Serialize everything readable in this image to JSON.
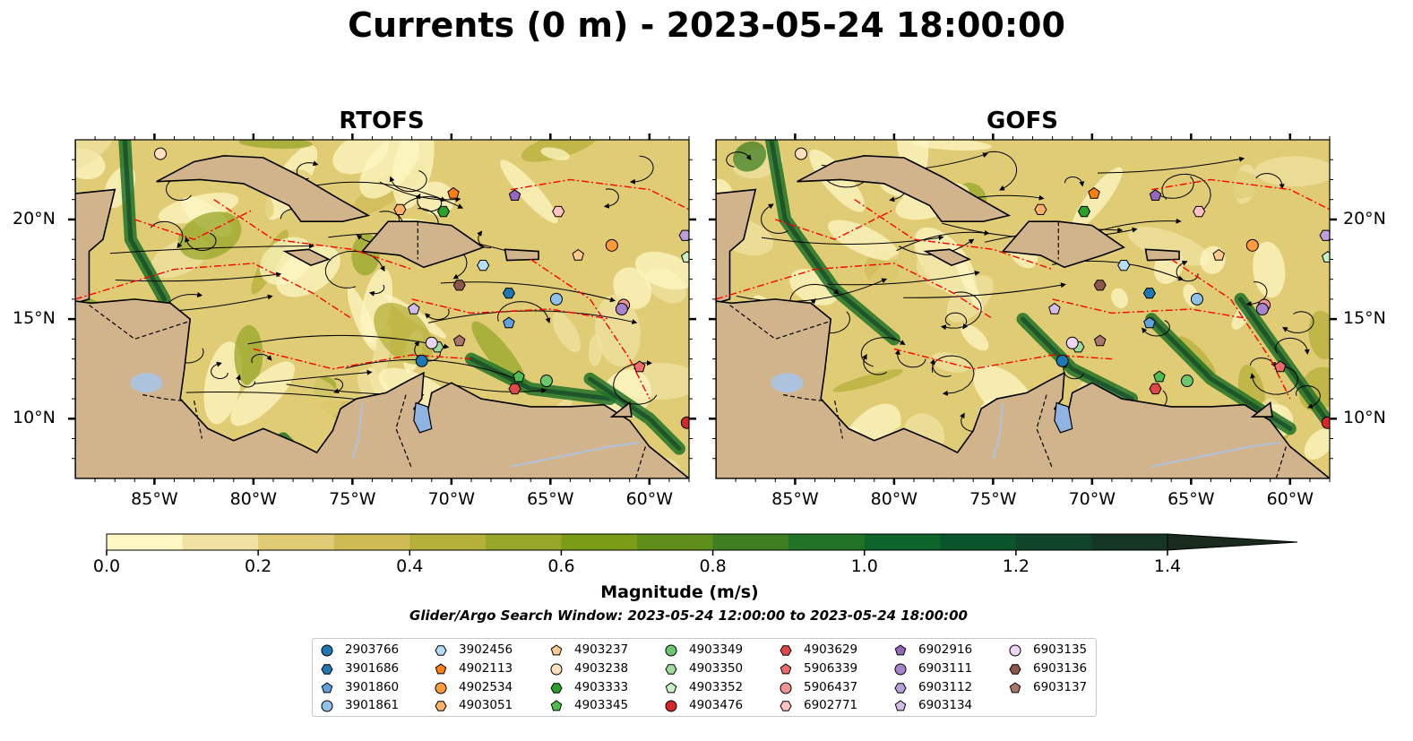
{
  "title": "Currents (0 m) - 2023-05-24 18:00:00",
  "panels": [
    {
      "title": "RTOFS"
    },
    {
      "title": "GOFS"
    }
  ],
  "colors": {
    "land": "#d2b48c",
    "lake": "#8fb4e3",
    "river": "#a9c4e6",
    "eez": "#ff0000",
    "streamline": "#000000"
  },
  "colorbar": {
    "label": "Magnitude (m/s)",
    "ticks": [
      "0.0",
      "0.2",
      "0.4",
      "0.6",
      "0.8",
      "1.0",
      "1.2",
      "1.4"
    ],
    "bins": [
      "#fdf7c3",
      "#f0e3a1",
      "#dfcc74",
      "#cfbb55",
      "#b5b03a",
      "#98a72a",
      "#7a9c16",
      "#5f8e1a",
      "#3f7f22",
      "#217227",
      "#0e652c",
      "#0b552d",
      "#114529",
      "#153525",
      "#1a2a1c"
    ]
  },
  "search_window": "Glider/Argo Search Window: 2023-05-24 12:00:00 to 2023-05-24 18:00:00",
  "chart_data": {
    "type": "map",
    "variable": "surface current magnitude (m/s)",
    "depth": "0 m",
    "time": "2023-05-24 18:00:00",
    "lon_ticks": [
      "85°W",
      "80°W",
      "75°W",
      "70°W",
      "65°W",
      "60°W"
    ],
    "lat_ticks": [
      "20°N",
      "15°N",
      "10°N"
    ],
    "lon_range": [
      -89,
      -58
    ],
    "lat_range": [
      7,
      24
    ],
    "vmin": 0.0,
    "vmax": 1.5,
    "floats": [
      {
        "id": "2903766",
        "marker": "circle",
        "color": "#1f77b4",
        "lon": -71.5,
        "lat": 12.9
      },
      {
        "id": "3901686",
        "marker": "hexagon",
        "color": "#1f77b4",
        "lon": -67.1,
        "lat": 16.3
      },
      {
        "id": "3901860",
        "marker": "pentagon",
        "color": "#5fa2dd",
        "lon": -67.1,
        "lat": 14.8
      },
      {
        "id": "3901861",
        "marker": "circle",
        "color": "#8fc1ec",
        "lon": -64.7,
        "lat": 16.0
      },
      {
        "id": "3902456",
        "marker": "hexagon",
        "color": "#b6ddf7",
        "lon": -68.4,
        "lat": 17.7
      },
      {
        "id": "4902113",
        "marker": "pentagon",
        "color": "#ff7f0e",
        "lon": -69.9,
        "lat": 21.3
      },
      {
        "id": "4902534",
        "marker": "circle",
        "color": "#ff9a3c",
        "lon": -61.9,
        "lat": 18.7
      },
      {
        "id": "4903051",
        "marker": "hexagon",
        "color": "#ffb066",
        "lon": -72.6,
        "lat": 20.5
      },
      {
        "id": "4903237",
        "marker": "pentagon",
        "color": "#ffc98e",
        "lon": -63.6,
        "lat": 18.2
      },
      {
        "id": "4903238",
        "marker": "circle",
        "color": "#ffe0bd",
        "lon": -84.7,
        "lat": 23.3
      },
      {
        "id": "4903333",
        "marker": "hexagon",
        "color": "#2ca02c",
        "lon": -70.4,
        "lat": 20.4
      },
      {
        "id": "4903345",
        "marker": "pentagon",
        "color": "#4dbd4d",
        "lon": -66.6,
        "lat": 12.1
      },
      {
        "id": "4903349",
        "marker": "circle",
        "color": "#6cc66c",
        "lon": -65.2,
        "lat": 11.9
      },
      {
        "id": "4903350",
        "marker": "hexagon",
        "color": "#9edb9a",
        "lon": -70.7,
        "lat": 13.6
      },
      {
        "id": "4903352",
        "marker": "pentagon",
        "color": "#c9f2c4",
        "lon": -58.1,
        "lat": 18.1
      },
      {
        "id": "4903476",
        "marker": "circle",
        "color": "#d62728",
        "lon": -58.1,
        "lat": 9.8
      },
      {
        "id": "4903629",
        "marker": "hexagon",
        "color": "#e04848",
        "lon": -66.8,
        "lat": 11.5
      },
      {
        "id": "5906339",
        "marker": "pentagon",
        "color": "#ee6b6b",
        "lon": -60.5,
        "lat": 12.6
      },
      {
        "id": "5906437",
        "marker": "circle",
        "color": "#f39494",
        "lon": -61.3,
        "lat": 15.7
      },
      {
        "id": "6902771",
        "marker": "hexagon",
        "color": "#ffc2c2",
        "lon": -64.6,
        "lat": 20.4
      },
      {
        "id": "6902916",
        "marker": "pentagon",
        "color": "#9467bd",
        "lon": -66.8,
        "lat": 21.2
      },
      {
        "id": "6903111",
        "marker": "circle",
        "color": "#a784cd",
        "lon": -61.4,
        "lat": 15.5
      },
      {
        "id": "6903112",
        "marker": "hexagon",
        "color": "#bb9fdb",
        "lon": -58.2,
        "lat": 19.2
      },
      {
        "id": "6903134",
        "marker": "pentagon",
        "color": "#d2bdec",
        "lon": -71.9,
        "lat": 15.5
      },
      {
        "id": "6903135",
        "marker": "circle",
        "color": "#ecd5f7",
        "lon": -71.0,
        "lat": 13.8
      },
      {
        "id": "6903136",
        "marker": "hexagon",
        "color": "#8c564b",
        "lon": -69.6,
        "lat": 16.7
      },
      {
        "id": "6903137",
        "marker": "pentagon",
        "color": "#a9766b",
        "lon": -69.6,
        "lat": 13.9
      }
    ]
  }
}
